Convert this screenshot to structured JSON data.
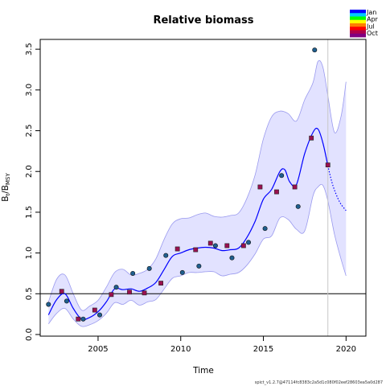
{
  "chart_data": {
    "type": "line",
    "title": "Relative biomass",
    "xlabel": "Time",
    "ylabel_main": "B",
    "ylabel_sub_t": "t",
    "ylabel_sep": "/B",
    "ylabel_sub_msy": "MSY",
    "xlim": [
      2001.5,
      2021.2
    ],
    "ylim": [
      -0.02,
      3.62
    ],
    "x_ticks": [
      2005,
      2010,
      2015,
      2020
    ],
    "x_tick_labels": [
      "2005",
      "2010",
      "2015",
      "2020"
    ],
    "y_ticks": [
      0.0,
      0.5,
      1.0,
      1.5,
      2.0,
      2.5,
      3.0,
      3.5
    ],
    "y_tick_labels": [
      "0.0",
      "0.5",
      "1.0",
      "1.5",
      "2.0",
      "2.5",
      "3.0",
      "3.5"
    ],
    "reference_line_y": 0.5,
    "vertical_line_x": 2018.9,
    "grid": false,
    "legend_placement": "top-right",
    "legend": [
      "Jan",
      "Apr",
      "Jul",
      "Oct"
    ],
    "legend_colors": [
      "#0000ff",
      "#00c8ff",
      "#00ff00",
      "#ffff00",
      "#ff7f00",
      "#ff0000",
      "#b0004a",
      "#800080"
    ],
    "colors": {
      "fit_line": "#0000ff",
      "band_fill": "#e2e2ff",
      "band_stroke": "#9a9aee",
      "point_circle": "#1f5f8f",
      "point_square": "#9a1050",
      "reference": "#000000",
      "vline": "#c8c8c8"
    },
    "observations": [
      {
        "x": 2002.0,
        "y": 0.37,
        "marker": "circle"
      },
      {
        "x": 2002.8,
        "y": 0.53,
        "marker": "square"
      },
      {
        "x": 2003.1,
        "y": 0.41,
        "marker": "circle"
      },
      {
        "x": 2003.8,
        "y": 0.19,
        "marker": "square"
      },
      {
        "x": 2004.1,
        "y": 0.19,
        "marker": "circle"
      },
      {
        "x": 2004.8,
        "y": 0.3,
        "marker": "square"
      },
      {
        "x": 2005.1,
        "y": 0.24,
        "marker": "circle"
      },
      {
        "x": 2005.8,
        "y": 0.49,
        "marker": "square"
      },
      {
        "x": 2006.1,
        "y": 0.58,
        "marker": "circle"
      },
      {
        "x": 2006.9,
        "y": 0.52,
        "marker": "square"
      },
      {
        "x": 2007.1,
        "y": 0.75,
        "marker": "circle"
      },
      {
        "x": 2007.8,
        "y": 0.51,
        "marker": "square"
      },
      {
        "x": 2008.1,
        "y": 0.81,
        "marker": "circle"
      },
      {
        "x": 2008.8,
        "y": 0.63,
        "marker": "square"
      },
      {
        "x": 2009.1,
        "y": 0.97,
        "marker": "circle"
      },
      {
        "x": 2009.8,
        "y": 1.05,
        "marker": "square"
      },
      {
        "x": 2010.1,
        "y": 0.76,
        "marker": "circle"
      },
      {
        "x": 2010.9,
        "y": 1.04,
        "marker": "square"
      },
      {
        "x": 2011.1,
        "y": 0.84,
        "marker": "circle"
      },
      {
        "x": 2011.8,
        "y": 1.12,
        "marker": "square"
      },
      {
        "x": 2012.1,
        "y": 1.09,
        "marker": "circle"
      },
      {
        "x": 2012.8,
        "y": 1.09,
        "marker": "square"
      },
      {
        "x": 2013.1,
        "y": 0.94,
        "marker": "circle"
      },
      {
        "x": 2013.8,
        "y": 1.09,
        "marker": "square"
      },
      {
        "x": 2014.1,
        "y": 1.13,
        "marker": "circle"
      },
      {
        "x": 2014.8,
        "y": 1.81,
        "marker": "square"
      },
      {
        "x": 2015.1,
        "y": 1.3,
        "marker": "circle"
      },
      {
        "x": 2015.8,
        "y": 1.75,
        "marker": "square"
      },
      {
        "x": 2016.1,
        "y": 1.95,
        "marker": "circle"
      },
      {
        "x": 2016.9,
        "y": 1.81,
        "marker": "square"
      },
      {
        "x": 2017.1,
        "y": 1.57,
        "marker": "circle"
      },
      {
        "x": 2017.9,
        "y": 2.41,
        "marker": "square"
      },
      {
        "x": 2018.1,
        "y": 3.49,
        "marker": "circle"
      },
      {
        "x": 2018.9,
        "y": 2.08,
        "marker": "square"
      }
    ],
    "fit": {
      "x": [
        2002.0,
        2002.5,
        2003.0,
        2003.5,
        2004.0,
        2004.5,
        2005.0,
        2005.5,
        2006.0,
        2006.5,
        2007.0,
        2007.5,
        2008.0,
        2008.5,
        2009.0,
        2009.5,
        2010.0,
        2010.5,
        2011.0,
        2011.5,
        2012.0,
        2012.5,
        2013.0,
        2013.5,
        2014.0,
        2014.5,
        2015.0,
        2015.5,
        2016.0,
        2016.3,
        2016.6,
        2017.0,
        2017.5,
        2018.0,
        2018.3,
        2018.6,
        2018.9
      ],
      "y": [
        0.24,
        0.43,
        0.5,
        0.32,
        0.19,
        0.21,
        0.28,
        0.4,
        0.56,
        0.55,
        0.56,
        0.53,
        0.57,
        0.64,
        0.8,
        0.96,
        1.0,
        1.04,
        1.06,
        1.07,
        1.06,
        1.03,
        1.04,
        1.06,
        1.19,
        1.39,
        1.66,
        1.78,
        2.0,
        2.02,
        1.87,
        1.84,
        2.22,
        2.48,
        2.52,
        2.35,
        2.07
      ]
    },
    "forecast": {
      "x": [
        2018.9,
        2019.2,
        2019.6,
        2020.0
      ],
      "y": [
        2.07,
        1.83,
        1.63,
        1.52
      ]
    },
    "band_upper": {
      "x": [
        2002.0,
        2002.5,
        2003.0,
        2003.5,
        2004.0,
        2004.5,
        2005.0,
        2005.5,
        2006.0,
        2006.5,
        2007.0,
        2007.5,
        2008.0,
        2008.5,
        2009.0,
        2009.5,
        2010.0,
        2010.5,
        2011.0,
        2011.5,
        2012.0,
        2012.5,
        2013.0,
        2013.5,
        2014.0,
        2014.5,
        2015.0,
        2015.5,
        2016.0,
        2016.5,
        2017.0,
        2017.5,
        2018.0,
        2018.3,
        2018.6,
        2018.9,
        2019.3,
        2019.7,
        2020.0
      ],
      "y": [
        0.4,
        0.68,
        0.73,
        0.5,
        0.3,
        0.35,
        0.42,
        0.58,
        0.76,
        0.8,
        0.73,
        0.75,
        0.8,
        0.93,
        1.17,
        1.36,
        1.42,
        1.43,
        1.47,
        1.49,
        1.45,
        1.44,
        1.46,
        1.49,
        1.67,
        1.96,
        2.4,
        2.67,
        2.74,
        2.71,
        2.62,
        2.88,
        3.09,
        3.35,
        3.28,
        2.93,
        2.48,
        2.68,
        3.1
      ]
    },
    "band_lower": {
      "x": [
        2002.0,
        2002.5,
        2003.0,
        2003.5,
        2004.0,
        2004.5,
        2005.0,
        2005.5,
        2006.0,
        2006.5,
        2007.0,
        2007.5,
        2008.0,
        2008.5,
        2009.0,
        2009.5,
        2010.0,
        2010.5,
        2011.0,
        2011.5,
        2012.0,
        2012.5,
        2013.0,
        2013.5,
        2014.0,
        2014.5,
        2015.0,
        2015.5,
        2016.0,
        2016.5,
        2017.0,
        2017.5,
        2018.0,
        2018.3,
        2018.6,
        2018.9,
        2019.3,
        2019.7,
        2020.0
      ],
      "y": [
        0.13,
        0.26,
        0.32,
        0.19,
        0.1,
        0.12,
        0.17,
        0.26,
        0.39,
        0.37,
        0.42,
        0.36,
        0.4,
        0.43,
        0.56,
        0.69,
        0.72,
        0.76,
        0.76,
        0.77,
        0.77,
        0.72,
        0.74,
        0.76,
        0.85,
        0.99,
        1.17,
        1.21,
        1.43,
        1.41,
        1.29,
        1.27,
        1.7,
        1.81,
        1.83,
        1.64,
        1.23,
        0.92,
        0.72
      ]
    }
  },
  "footer_text": "spict_v1.2.7@47114fc8383c2a5d1c080f02eef28603ea5a0d287"
}
